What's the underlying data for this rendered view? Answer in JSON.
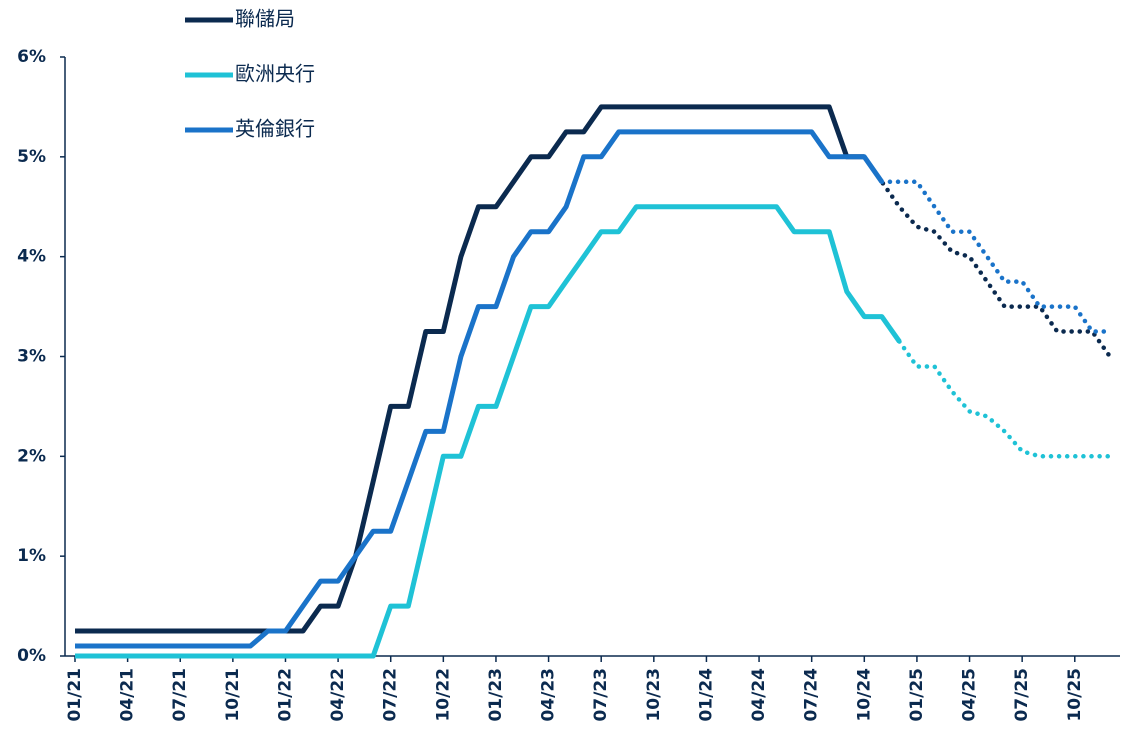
{
  "chart_data": {
    "type": "line",
    "categories": [
      "01/21",
      null,
      null,
      "04/21",
      null,
      null,
      "07/21",
      null,
      null,
      "10/21",
      null,
      null,
      "01/22",
      null,
      null,
      "04/22",
      null,
      null,
      "07/22",
      null,
      null,
      "10/22",
      null,
      null,
      "01/23",
      null,
      null,
      "04/23",
      null,
      null,
      "07/23",
      null,
      null,
      "10/23",
      null,
      null,
      "01/24",
      null,
      null,
      "04/24",
      null,
      null,
      "07/24",
      null,
      null,
      "10/24",
      null,
      null,
      "01/25",
      null,
      null,
      "04/25",
      null,
      null,
      "07/25",
      null,
      null,
      "10/25",
      null,
      null
    ],
    "ylim": [
      0,
      6
    ],
    "yticks": [
      {
        "value": 0,
        "label": "0%"
      },
      {
        "value": 1,
        "label": "1%"
      },
      {
        "value": 2,
        "label": "2%"
      },
      {
        "value": 3,
        "label": "3%"
      },
      {
        "value": 4,
        "label": "4%"
      },
      {
        "value": 5,
        "label": "5%"
      },
      {
        "value": 6,
        "label": "6%"
      }
    ],
    "series": [
      {
        "name": "聯儲局",
        "color": "#0b2a4f",
        "values": [
          0.25,
          0.25,
          0.25,
          0.25,
          0.25,
          0.25,
          0.25,
          0.25,
          0.25,
          0.25,
          0.25,
          0.25,
          0.25,
          0.25,
          0.5,
          0.5,
          1.0,
          1.75,
          2.5,
          2.5,
          3.25,
          3.25,
          4.0,
          4.5,
          4.5,
          4.75,
          5.0,
          5.0,
          5.25,
          5.25,
          5.5,
          5.5,
          5.5,
          5.5,
          5.5,
          5.5,
          5.5,
          5.5,
          5.5,
          5.5,
          5.5,
          5.5,
          5.5,
          5.5,
          5.0,
          5.0,
          null,
          null,
          null,
          null,
          null,
          null,
          null,
          null,
          null,
          null,
          null,
          null,
          null,
          null
        ],
        "forecast": [
          null,
          null,
          null,
          null,
          null,
          null,
          null,
          null,
          null,
          null,
          null,
          null,
          null,
          null,
          null,
          null,
          null,
          null,
          null,
          null,
          null,
          null,
          null,
          null,
          null,
          null,
          null,
          null,
          null,
          null,
          null,
          null,
          null,
          null,
          null,
          null,
          null,
          null,
          null,
          null,
          null,
          null,
          null,
          null,
          null,
          5.0,
          4.75,
          4.5,
          4.3,
          4.25,
          4.05,
          4.0,
          3.75,
          3.5,
          3.5,
          3.5,
          3.25,
          3.25,
          3.25,
          3.0
        ]
      },
      {
        "name": "歐洲央行",
        "color": "#1fc2d6",
        "values": [
          0,
          0,
          0,
          0,
          0,
          0,
          0,
          0,
          0,
          0,
          0,
          0,
          0,
          0,
          0,
          0,
          0,
          0,
          0.5,
          0.5,
          1.25,
          2.0,
          2.0,
          2.5,
          2.5,
          3.0,
          3.5,
          3.5,
          3.75,
          4.0,
          4.25,
          4.25,
          4.5,
          4.5,
          4.5,
          4.5,
          4.5,
          4.5,
          4.5,
          4.5,
          4.5,
          4.25,
          4.25,
          4.25,
          3.65,
          3.4,
          3.4,
          3.15,
          null,
          null,
          null,
          null,
          null,
          null,
          null,
          null,
          null,
          null,
          null,
          null
        ],
        "forecast": [
          null,
          null,
          null,
          null,
          null,
          null,
          null,
          null,
          null,
          null,
          null,
          null,
          null,
          null,
          null,
          null,
          null,
          null,
          null,
          null,
          null,
          null,
          null,
          null,
          null,
          null,
          null,
          null,
          null,
          null,
          null,
          null,
          null,
          null,
          null,
          null,
          null,
          null,
          null,
          null,
          null,
          null,
          null,
          null,
          null,
          null,
          null,
          3.15,
          2.9,
          2.9,
          2.65,
          2.45,
          2.4,
          2.25,
          2.05,
          2.0,
          2.0,
          2.0,
          2.0,
          2.0
        ]
      },
      {
        "name": "英倫銀行",
        "color": "#1a73c9",
        "values": [
          0.1,
          0.1,
          0.1,
          0.1,
          0.1,
          0.1,
          0.1,
          0.1,
          0.1,
          0.1,
          0.1,
          0.25,
          0.25,
          0.5,
          0.75,
          0.75,
          1.0,
          1.25,
          1.25,
          1.75,
          2.25,
          2.25,
          3.0,
          3.5,
          3.5,
          4.0,
          4.25,
          4.25,
          4.5,
          5.0,
          5.0,
          5.25,
          5.25,
          5.25,
          5.25,
          5.25,
          5.25,
          5.25,
          5.25,
          5.25,
          5.25,
          5.25,
          5.25,
          5.0,
          5.0,
          5.0,
          4.75,
          null,
          null,
          null,
          null,
          null,
          null,
          null,
          null,
          null,
          null,
          null,
          null,
          null
        ],
        "forecast": [
          null,
          null,
          null,
          null,
          null,
          null,
          null,
          null,
          null,
          null,
          null,
          null,
          null,
          null,
          null,
          null,
          null,
          null,
          null,
          null,
          null,
          null,
          null,
          null,
          null,
          null,
          null,
          null,
          null,
          null,
          null,
          null,
          null,
          null,
          null,
          null,
          null,
          null,
          null,
          null,
          null,
          null,
          null,
          null,
          null,
          null,
          4.75,
          4.75,
          4.75,
          4.5,
          4.25,
          4.25,
          4.0,
          3.75,
          3.75,
          3.5,
          3.5,
          3.5,
          3.25,
          3.25
        ]
      }
    ]
  }
}
